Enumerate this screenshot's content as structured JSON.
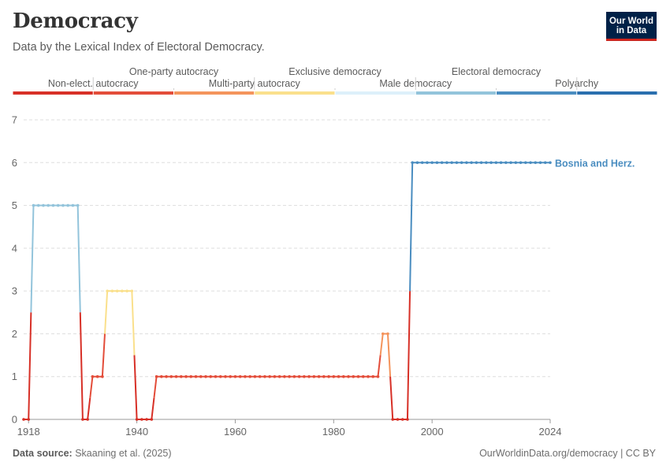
{
  "header": {
    "title": "Democracy",
    "subtitle": "Data by the Lexical Index of Electoral Democracy."
  },
  "logo": {
    "line1": "Our World",
    "line2": "in Data"
  },
  "footer": {
    "source_label": "Data source:",
    "source_text": "Skaaning et al. (2025)",
    "credit": "OurWorldinData.org/democracy | CC BY"
  },
  "colors": {
    "text": "#333333",
    "grid": "#dddddd",
    "axis": "#666666",
    "series_label": "#4a8dc0"
  },
  "chart_data": {
    "type": "line",
    "title": "Democracy",
    "subtitle": "Data by the Lexical Index of Electoral Democracy.",
    "xlim": [
      1917,
      2024
    ],
    "ylim": [
      0,
      7
    ],
    "x_ticks": [
      1918,
      1940,
      1960,
      1980,
      2000,
      2024
    ],
    "y_ticks": [
      0,
      1,
      2,
      3,
      4,
      5,
      6,
      7
    ],
    "grid": "horizontal dashed",
    "legend": {
      "type": "categorical color scale",
      "placement": "top",
      "items": [
        {
          "label": "Non-elect. autocracy",
          "value": 0,
          "color": "#d73027"
        },
        {
          "label": "One-party autocracy",
          "value": 1,
          "color": "#e34d3a"
        },
        {
          "label": "Multi-party autocracy",
          "value": 2,
          "color": "#f4945c"
        },
        {
          "label": "Exclusive democracy",
          "value": 3,
          "color": "#fae08c"
        },
        {
          "label": "Male democracy",
          "value": 4,
          "color": "#ddf0fa"
        },
        {
          "label": "Electoral democracy",
          "value": 5,
          "color": "#93c4db"
        },
        {
          "label": "Polyarchy",
          "value": 6,
          "color": "#4a8dc0"
        },
        {
          "label": "",
          "value": 7,
          "color": "#2a6fae"
        }
      ]
    },
    "series": [
      {
        "name": "Bosnia and Herz.",
        "segments": [
          {
            "start": 1917,
            "end": 1918,
            "value": 0
          },
          {
            "start": 1919,
            "end": 1928,
            "value": 5
          },
          {
            "start": 1929,
            "end": 1930,
            "value": 0
          },
          {
            "start": 1931,
            "end": 1933,
            "value": 1
          },
          {
            "start": 1934,
            "end": 1939,
            "value": 3
          },
          {
            "start": 1940,
            "end": 1943,
            "value": 0
          },
          {
            "start": 1944,
            "end": 1989,
            "value": 1
          },
          {
            "start": 1990,
            "end": 1991,
            "value": 2
          },
          {
            "start": 1992,
            "end": 1995,
            "value": 0
          },
          {
            "start": 1996,
            "end": 2024,
            "value": 6
          }
        ]
      }
    ]
  }
}
